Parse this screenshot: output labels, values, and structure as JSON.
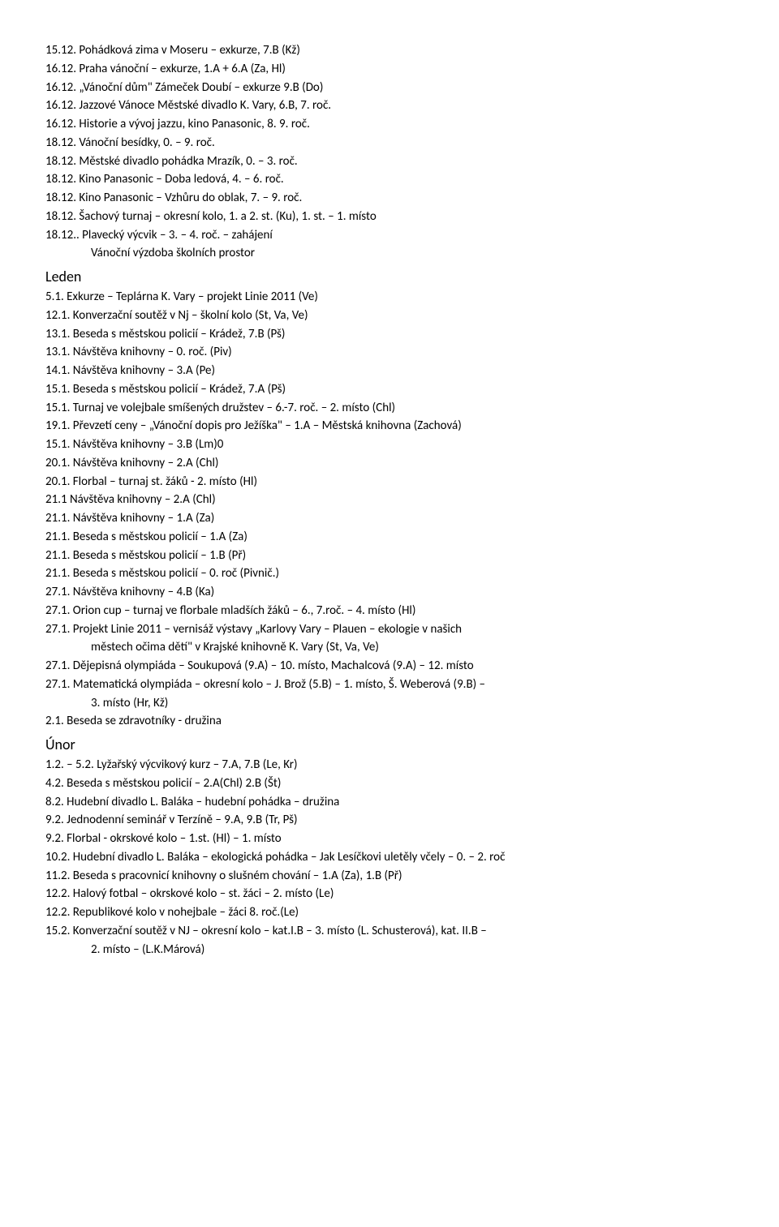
{
  "lines": [
    {
      "text": "15.12. Pohádková zima v Moseru – exkurze, 7.B (Kž)"
    },
    {
      "text": "16.12. Praha vánoční – exkurze, 1.A + 6.A (Za, Hl)"
    },
    {
      "text": "16.12. „Vánoční dům\" Zámeček Doubí – exkurze 9.B (Do)"
    },
    {
      "text": "16.12. Jazzové Vánoce Městské divadlo K. Vary, 6.B, 7. roč."
    },
    {
      "text": "16.12. Historie a vývoj jazzu, kino Panasonic, 8. 9. roč."
    },
    {
      "text": "18.12. Vánoční besídky, 0. – 9. roč."
    },
    {
      "text": "18.12. Městské divadlo pohádka Mrazík, 0. – 3. roč."
    },
    {
      "text": "18.12. Kino Panasonic – Doba ledová, 4. – 6. roč."
    },
    {
      "text": "18.12. Kino Panasonic – Vzhůru do oblak, 7. – 9. roč."
    },
    {
      "text": "18.12. Šachový turnaj – okresní kolo, 1. a 2. st. (Ku), 1. st. – 1. místo"
    },
    {
      "text": "18.12.. Plavecký výcvik – 3. – 4. roč. – zahájení"
    },
    {
      "text": "Vánoční výzdoba školních prostor",
      "indent": true
    },
    {
      "text": "Leden",
      "heading": true
    },
    {
      "text": "5.1. Exkurze – Teplárna K. Vary – projekt Linie 2011 (Ve)"
    },
    {
      "text": "12.1. Konverzační soutěž v Nj – školní kolo (St, Va, Ve)"
    },
    {
      "text": "13.1. Beseda s městskou policií – Krádež, 7.B (Pš)"
    },
    {
      "text": "13.1. Návštěva knihovny – 0. roč. (Piv)"
    },
    {
      "text": "14.1. Návštěva knihovny – 3.A (Pe)"
    },
    {
      "text": "15.1. Beseda s městskou policií – Krádež, 7.A (Pš)"
    },
    {
      "text": "15.1. Turnaj ve volejbale smíšených družstev – 6.-7. roč. – 2. místo (Chl)"
    },
    {
      "text": "19.1. Převzetí ceny – „Vánoční dopis pro Ježíška\" – 1.A – Městská knihovna (Zachová)"
    },
    {
      "text": "15.1. Návštěva knihovny – 3.B (Lm)0"
    },
    {
      "text": "20.1. Návštěva knihovny – 2.A (Chl)"
    },
    {
      "text": "20.1. Florbal – turnaj st. žáků - 2. místo (Hl)"
    },
    {
      "text": "21.1 Návštěva knihovny – 2.A (Chl)"
    },
    {
      "text": "21.1. Návštěva knihovny – 1.A (Za)"
    },
    {
      "text": "21.1. Beseda s městskou policií – 1.A (Za)"
    },
    {
      "text": "21.1. Beseda s městskou policií – 1.B (Př)"
    },
    {
      "text": "21.1. Beseda s městskou policií – 0. roč (Pivnič.)"
    },
    {
      "text": "27.1. Návštěva knihovny – 4.B (Ka)"
    },
    {
      "text": "27.1. Orion cup – turnaj ve florbale mladších žáků – 6., 7.roč. – 4. místo (Hl)"
    },
    {
      "text": "27.1. Projekt Linie 2011 – vernisáž výstavy „Karlovy Vary – Plauen – ekologie v našich"
    },
    {
      "text": "městech očima dětí\" v Krajské knihovně K. Vary (St, Va, Ve)",
      "indent": true
    },
    {
      "text": "27.1. Dějepisná olympiáda – Soukupová (9.A) – 10. místo, Machalcová (9.A) – 12. místo"
    },
    {
      "text": "27.1. Matematická olympiáda – okresní kolo – J. Brož (5.B) – 1. místo, Š. Weberová (9.B) –"
    },
    {
      "text": "3. místo (Hr, Kž)",
      "indent": true
    },
    {
      "text": "2.1. Beseda se zdravotníky - družina"
    },
    {
      "text": "Únor",
      "heading": true
    },
    {
      "text": "1.2. – 5.2. Lyžařský výcvikový kurz – 7.A, 7.B (Le, Kr)"
    },
    {
      "text": "4.2. Beseda s městskou policií – 2.A(Chl) 2.B (Št)"
    },
    {
      "text": "8.2. Hudební divadlo L. Baláka – hudební pohádka – družina"
    },
    {
      "text": "9.2. Jednodenní seminář v Terzíně – 9.A, 9.B (Tr, Pš)"
    },
    {
      "text": "9.2. Florbal - okrskové kolo – 1.st. (Hl) – 1. místo"
    },
    {
      "text": "10.2. Hudební divadlo L. Baláka – ekologická pohádka – Jak Lesíčkovi uletěly včely – 0. – 2. roč"
    },
    {
      "text": "11.2. Beseda s pracovnicí knihovny o slušném chování – 1.A (Za), 1.B (Př)"
    },
    {
      "text": "12.2. Halový fotbal – okrskové kolo – st. žáci – 2. místo (Le)"
    },
    {
      "text": "12.2. Republikové kolo v nohejbale – žáci 8. roč.(Le)"
    },
    {
      "text": "15.2. Konverzační soutěž v NJ – okresní kolo – kat.I.B – 3. místo (L. Schusterová), kat. II.B –"
    },
    {
      "text": "2. místo – (L.K.Márová)",
      "indent": true
    }
  ]
}
